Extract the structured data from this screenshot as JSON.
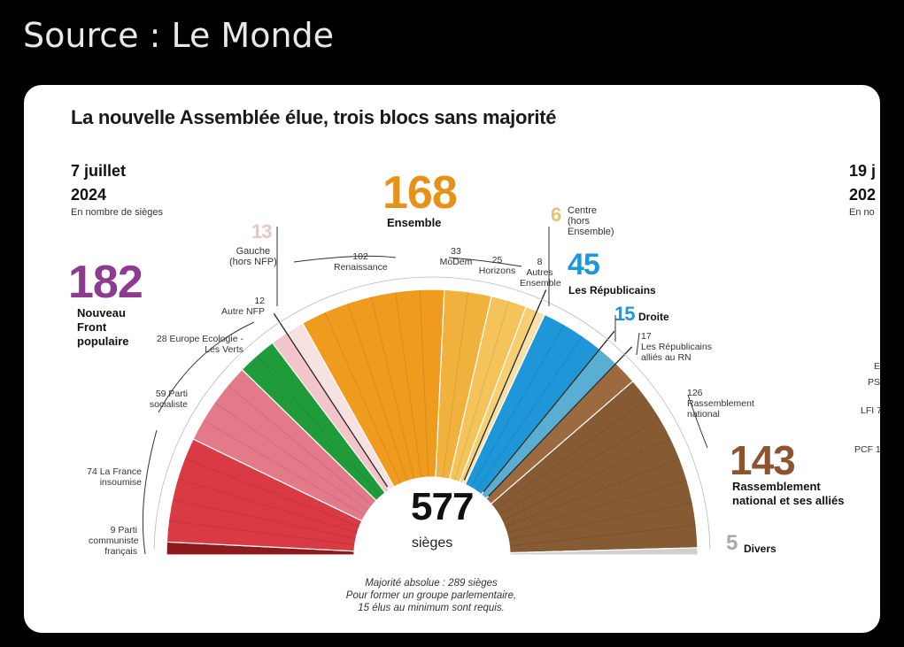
{
  "header": {
    "source": "Source : Le Monde"
  },
  "chart_data": {
    "type": "hemicycle",
    "title": "La nouvelle Assemblée élue, trois blocs sans majorité",
    "date": [
      "7 juillet",
      "2024"
    ],
    "unit": "En nombre de sièges",
    "total": 577,
    "total_label": "sièges",
    "footnote": [
      "Majorité absolue : 289 sièges",
      "Pour former un groupe parlementaire,",
      "15 élus au minimum sont requis."
    ],
    "series": [
      {
        "name": "Parti communiste français",
        "value": 9,
        "color": "#8c1a1a"
      },
      {
        "name": "La France insoumise",
        "value": 74,
        "color": "#d93a43"
      },
      {
        "name": "Parti socialiste",
        "value": 59,
        "color": "#e27a8a"
      },
      {
        "name": "Europe Ecologie - Les Verts",
        "value": 28,
        "color": "#1f9b3c"
      },
      {
        "name": "Autre NFP",
        "value": 12,
        "color": "#f2c5c9"
      },
      {
        "name": "Gauche (hors NFP)",
        "value": 13,
        "color": "#f7e1e1"
      },
      {
        "name": "Renaissance",
        "value": 102,
        "color": "#ef9b1e"
      },
      {
        "name": "MoDem",
        "value": 33,
        "color": "#f0b23c"
      },
      {
        "name": "Horizons",
        "value": 25,
        "color": "#f4c35a"
      },
      {
        "name": "Autres Ensemble",
        "value": 8,
        "color": "#f6cf72"
      },
      {
        "name": "Centre (hors Ensemble)",
        "value": 6,
        "color": "#f8e0a8"
      },
      {
        "name": "Les Républicains",
        "value": 45,
        "color": "#1e96d7"
      },
      {
        "name": "Droite",
        "value": 15,
        "color": "#5aaed1"
      },
      {
        "name": "Les Républicains alliés au RN",
        "value": 17,
        "color": "#9b6a3e"
      },
      {
        "name": "Rassemblement national",
        "value": 126,
        "color": "#865a33"
      },
      {
        "name": "Divers",
        "value": 5,
        "color": "#cfcfcf"
      }
    ],
    "blocs": [
      {
        "value": 182,
        "name": "Nouveau Front populaire",
        "color": "#8e3a8f"
      },
      {
        "value": 168,
        "name": "Ensemble",
        "color": "#e5921b"
      },
      {
        "value": 13,
        "name": "Gauche (hors NFP)",
        "color": "#e3c6c6"
      },
      {
        "value": 6,
        "name": "Centre (hors Ensemble)",
        "color": "#e8c173"
      },
      {
        "value": 45,
        "name": "Les Républicains",
        "color": "#1e96d7"
      },
      {
        "value": 15,
        "name": "Droite",
        "color": "#1e96d7"
      },
      {
        "value": 143,
        "name": "Rassemblement national et ses alliés",
        "color": "#8a5530"
      },
      {
        "value": 5,
        "name": "Divers",
        "color": "#aaaaaa"
      }
    ],
    "labels": {
      "pcf": [
        "9 Parti",
        "communiste",
        "français"
      ],
      "lfi": [
        "74 La France",
        "insoumise"
      ],
      "ps": [
        "59 Parti",
        "socialiste"
      ],
      "eelv": [
        "28 Europe Ecologie -",
        "Les Verts"
      ],
      "autre_nfp": [
        "12",
        "Autre NFP"
      ],
      "gauche": [
        "Gauche",
        "(hors NFP)"
      ],
      "renaissance": [
        "102",
        "Renaissance"
      ],
      "modem": [
        "33",
        "MoDem"
      ],
      "horizons": [
        "25",
        "Horizons"
      ],
      "autres_ens": [
        "8",
        "Autres",
        "Ensemble"
      ],
      "centre": [
        "Centre",
        "(hors",
        "Ensemble)"
      ],
      "lr_rn": [
        "17",
        "Les Républicains",
        "alliés au RN"
      ],
      "rn": [
        "126",
        "Rassemblement",
        "national"
      ]
    },
    "next_panel": {
      "date": [
        "19 j",
        "202"
      ],
      "unit": "En no",
      "labels": [
        "E",
        "PS",
        "LFI 7",
        "PCF 1"
      ]
    }
  }
}
